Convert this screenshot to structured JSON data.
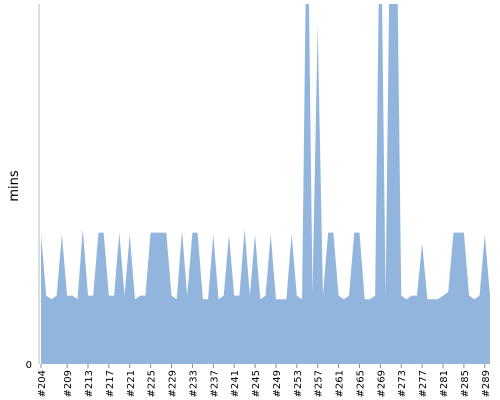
{
  "chart_data": {
    "type": "area",
    "ylabel": "mins",
    "y_tick_labels": [
      "0"
    ],
    "ylim": [
      0,
      1000
    ],
    "grid": false,
    "legend": "none",
    "fill_color": "#92b5de",
    "x_tick_labels": [
      "#204",
      "#209",
      "#213",
      "#217",
      "#221",
      "#225",
      "#229",
      "#233",
      "#237",
      "#241",
      "#245",
      "#249",
      "#253",
      "#257",
      "#261",
      "#265",
      "#269",
      "#273",
      "#277",
      "#281",
      "#285",
      "#289"
    ],
    "x": [
      204,
      205,
      206,
      207,
      208,
      209,
      210,
      211,
      212,
      213,
      214,
      215,
      216,
      217,
      218,
      219,
      220,
      221,
      222,
      223,
      224,
      225,
      226,
      227,
      228,
      229,
      230,
      231,
      232,
      233,
      234,
      235,
      236,
      237,
      238,
      239,
      240,
      241,
      242,
      243,
      244,
      245,
      246,
      247,
      248,
      249,
      250,
      251,
      252,
      253,
      254,
      255,
      256,
      257,
      258,
      259,
      260,
      261,
      262,
      263,
      264,
      265,
      266,
      267,
      268,
      269,
      270,
      271,
      272,
      273,
      274,
      275,
      276,
      277,
      278,
      279,
      280,
      281,
      282,
      283,
      284,
      285,
      286,
      287,
      288,
      289,
      290
    ],
    "values": [
      360,
      190,
      180,
      190,
      360,
      190,
      190,
      180,
      375,
      190,
      190,
      365,
      365,
      190,
      190,
      365,
      190,
      360,
      180,
      190,
      190,
      365,
      365,
      365,
      365,
      190,
      180,
      370,
      190,
      365,
      365,
      180,
      180,
      360,
      180,
      190,
      360,
      190,
      190,
      375,
      190,
      360,
      180,
      190,
      360,
      180,
      180,
      180,
      360,
      190,
      180,
      1400,
      200,
      940,
      190,
      365,
      365,
      190,
      180,
      190,
      365,
      365,
      180,
      180,
      190,
      1400,
      190,
      1400,
      1400,
      190,
      180,
      190,
      190,
      335,
      180,
      180,
      180,
      190,
      200,
      365,
      365,
      365,
      190,
      180,
      190,
      360,
      190
    ]
  }
}
